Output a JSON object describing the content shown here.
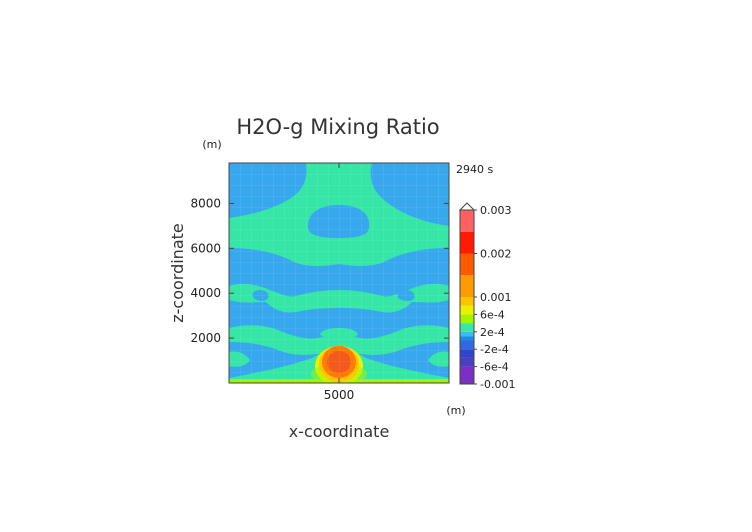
{
  "colors": {
    "band_neg_lt_-6e-4": "#7b2fc4",
    "band_-6e-4_-4e-4": "#4a3fc0",
    "band_-4e-4_-2e-4": "#2f55d6",
    "band_-2e-4_0": "#1e8ae8",
    "band_0_2e-4": "#3dbbf0",
    "band_2e-4_4e-4": "#39e6a8",
    "band_4e-4_6e-4": "#a6f000",
    "band_6e-4_8e-4": "#e6f200",
    "band_8e-4_1e-3": "#ffc400",
    "band_high_orange": "#ff7a00",
    "band_high_red": "#ff1a00",
    "band_high_pink": "#ff8a8a",
    "band_high_lightpink": "#ffc0c0",
    "background_field": "#38a8ee",
    "mid_field": "#36e6a6"
  },
  "chart_data": {
    "type": "heatmap",
    "title": "H2O-g Mixing Ratio",
    "time_label": "2940 s",
    "xlabel": "x-coordinate",
    "ylabel": "z-coordinate",
    "x_unit": "(m)",
    "y_unit": "(m)",
    "x_ticks": [
      "5000"
    ],
    "y_ticks": [
      "2000",
      "4000",
      "6000",
      "8000"
    ],
    "x_tick_values": [
      5000
    ],
    "y_tick_values": [
      2000,
      4000,
      6000,
      8000
    ],
    "xlim": [
      2000,
      8000
    ],
    "ylim": [
      0,
      9800
    ],
    "grid": true,
    "colorbar": {
      "labels": [
        "0.003",
        "0.002",
        "0.001",
        "6e-4",
        "2e-4",
        "-2e-4",
        "-6e-4",
        "-0.001"
      ],
      "label_values": [
        0.003,
        0.002,
        0.001,
        0.0006,
        0.0002,
        -0.0002,
        -0.0006,
        -0.001
      ],
      "range": [
        -0.001,
        0.003
      ],
      "extend_top": true
    }
  }
}
